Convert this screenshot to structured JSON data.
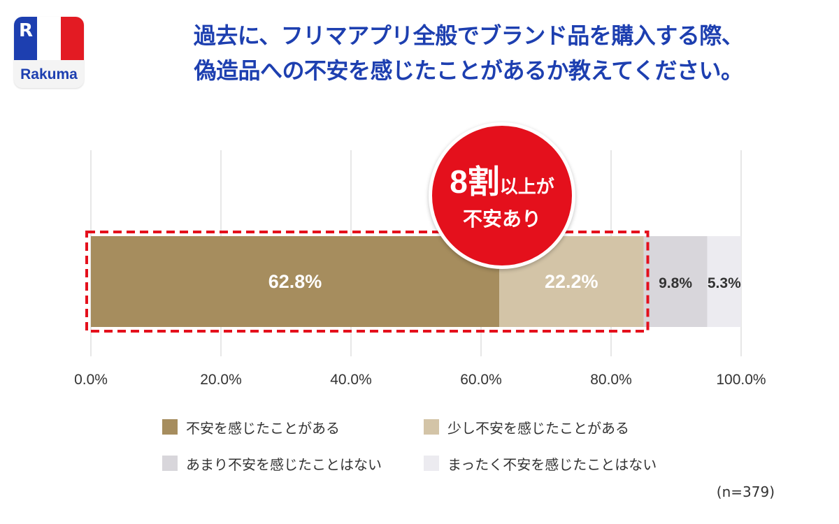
{
  "logo": {
    "mark": "R",
    "text": "Rakuma",
    "colors": {
      "blue": "#1d3fb0",
      "white": "#ffffff",
      "red": "#e31b23"
    }
  },
  "title": {
    "line1": "過去に、フリマアプリ全般でブランド品を購入する際、",
    "line2": "偽造品への不安を感じたことがあるか教えてください。"
  },
  "callout": {
    "big": "8割",
    "small": "以上が",
    "line2": "不安あり"
  },
  "sample_size": "(n=379)",
  "chart_data": {
    "type": "bar",
    "orientation": "horizontal-stacked-100",
    "xlim": [
      0,
      100
    ],
    "grid": true,
    "x_ticks": [
      "0.0%",
      "20.0%",
      "40.0%",
      "60.0%",
      "80.0%",
      "100.0%"
    ],
    "x_tick_values": [
      0,
      20,
      40,
      60,
      80,
      100
    ],
    "highlight_range": [
      0,
      85.0
    ],
    "series": [
      {
        "name": "不安を感じたことがある",
        "value": 62.8,
        "label": "62.8%",
        "color": "#a68d5e",
        "label_style": "inside"
      },
      {
        "name": "少し不安を感じたことがある",
        "value": 22.2,
        "label": "22.2%",
        "color": "#d3c4a7",
        "label_style": "inside"
      },
      {
        "name": "あまり不安を感じたことはない",
        "value": 9.8,
        "label": "9.8%",
        "color": "#d8d6db",
        "label_style": "dark"
      },
      {
        "name": "まったく不安を感じたことはない",
        "value": 5.3,
        "label": "5.3%",
        "color": "#ecebf0",
        "label_style": "dark"
      }
    ],
    "legend_position": "bottom"
  }
}
